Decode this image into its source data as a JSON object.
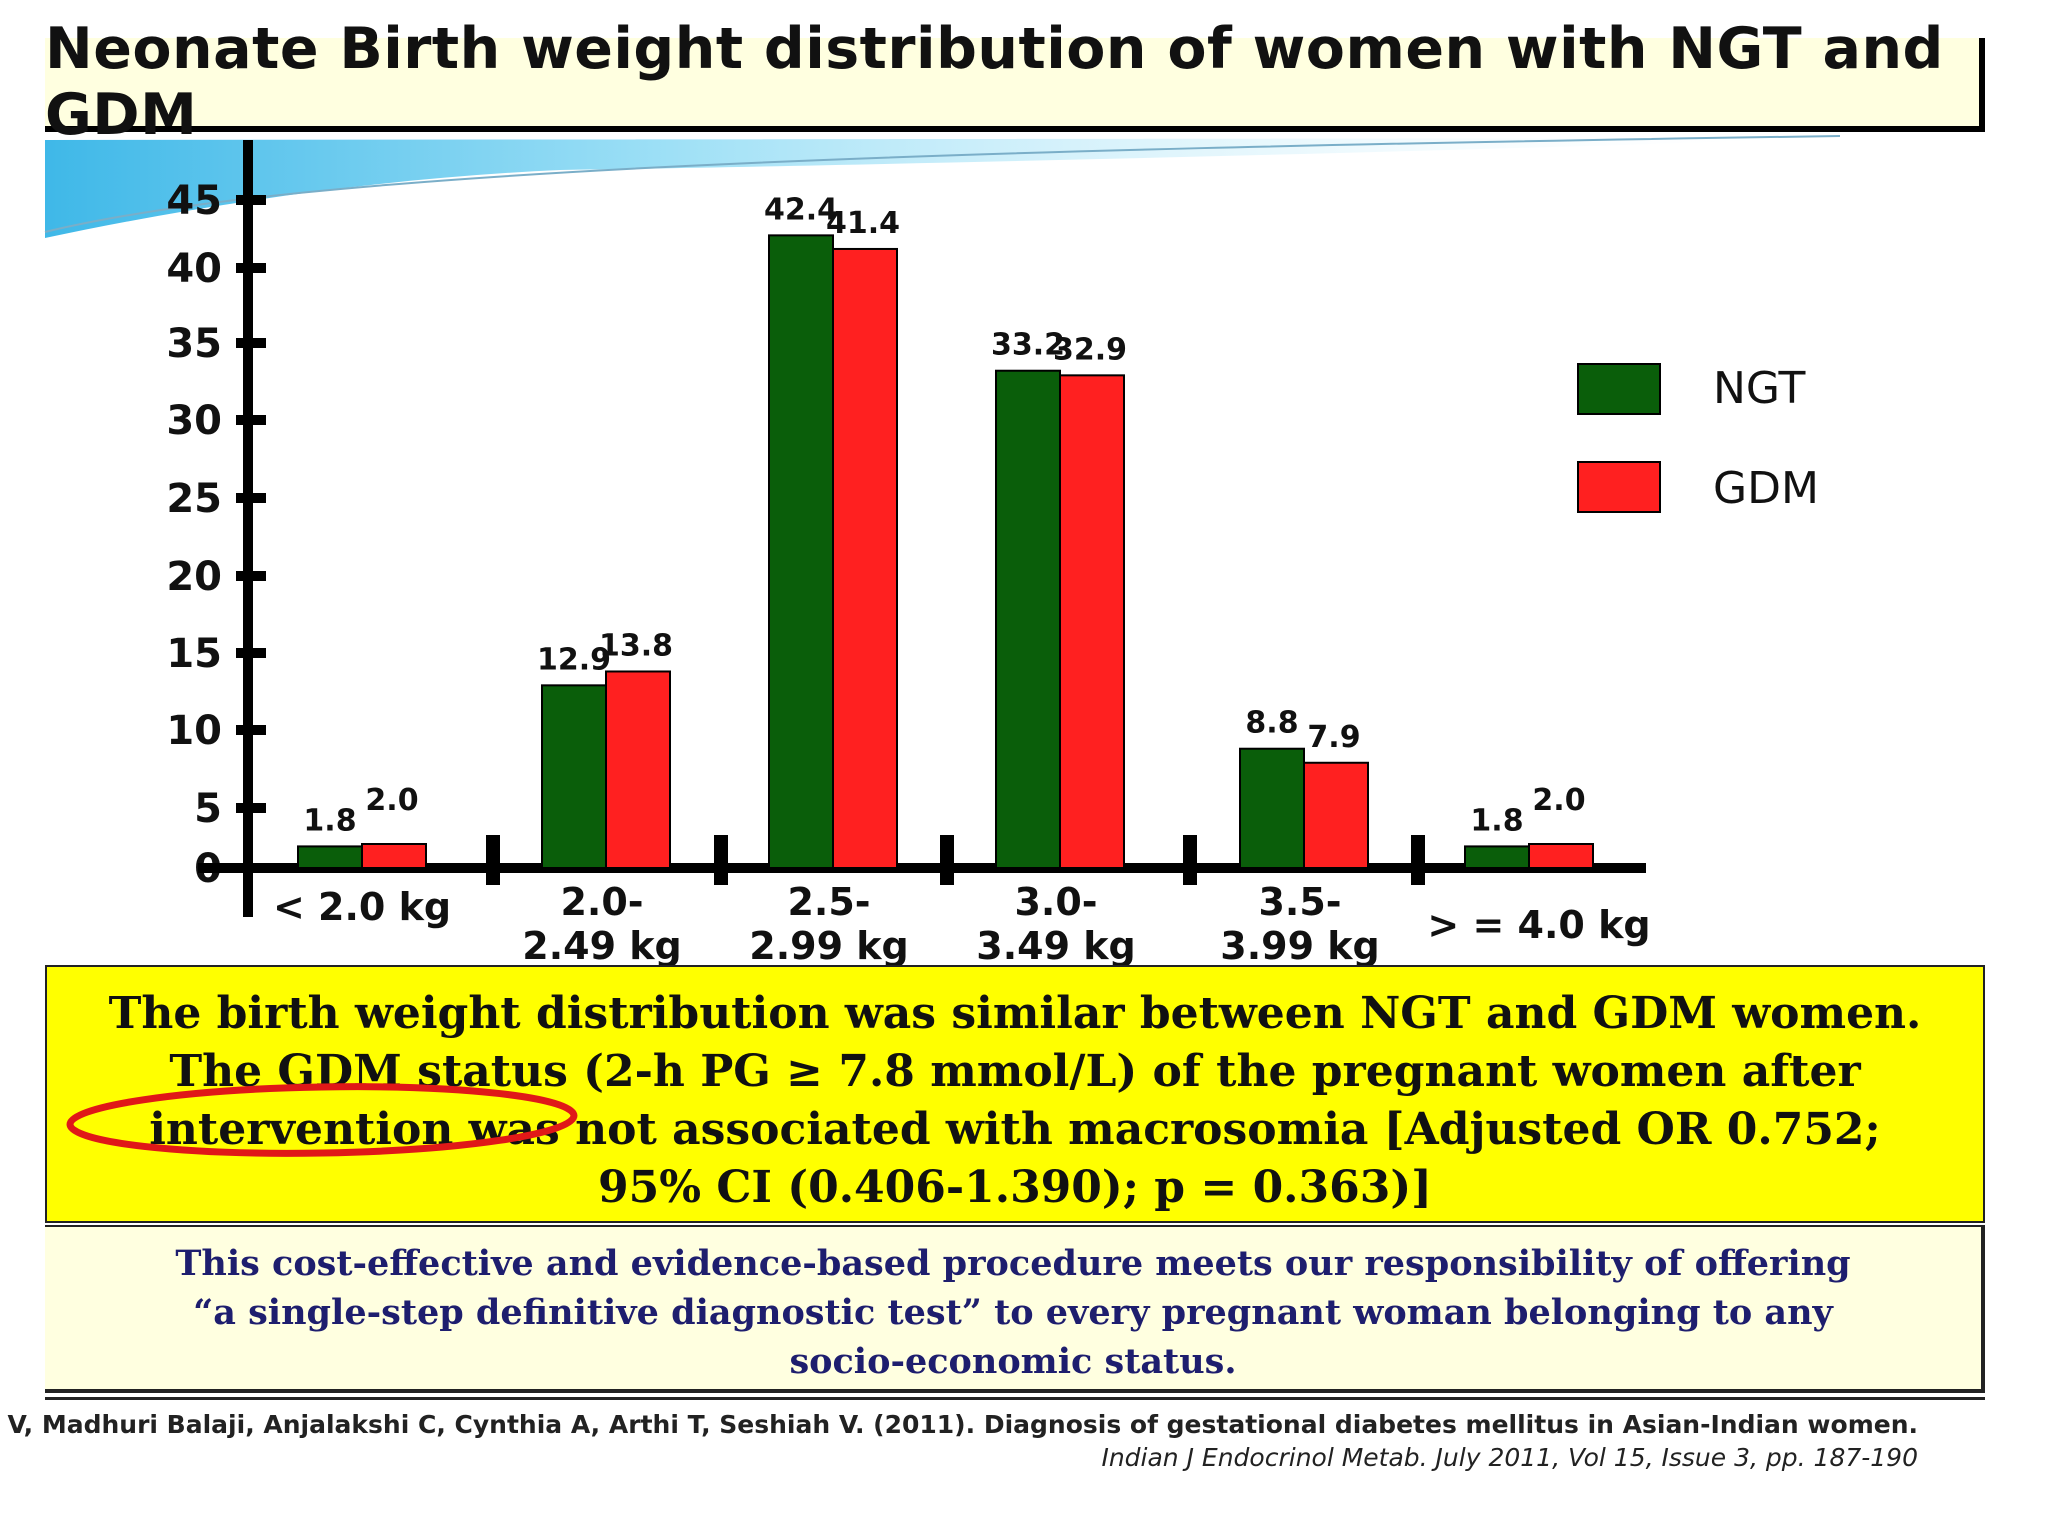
{
  "title": "Neonate Birth weight distribution of women with NGT and GDM",
  "colors": {
    "ngt": "#0a5e0a",
    "gdm": "#ff2020",
    "highlight": "#ffff00",
    "annotation": "#e01818"
  },
  "chart_data": {
    "type": "bar",
    "categories": [
      [
        "< 2.0 kg"
      ],
      [
        "2.0-",
        "2.49 kg"
      ],
      [
        "2.5-",
        "2.99 kg"
      ],
      [
        "3.0-",
        "3.49 kg"
      ],
      [
        "3.5-",
        "3.99 kg"
      ],
      [
        "> = 4.0 kg"
      ]
    ],
    "series": [
      {
        "name": "NGT",
        "values": [
          1.8,
          12.9,
          42.4,
          33.2,
          8.8,
          1.8
        ]
      },
      {
        "name": "GDM",
        "values": [
          2.0,
          13.8,
          41.4,
          32.9,
          7.9,
          2.0
        ]
      }
    ],
    "value_labels": {
      "NGT": [
        "1.8",
        "12.9",
        "42.4",
        "33.2",
        "8.8",
        "1.8"
      ],
      "GDM": [
        "2.0",
        "13.8",
        "41.4",
        "32.9",
        "7.9",
        "2.0"
      ]
    },
    "yticks": [
      0,
      5,
      10,
      15,
      20,
      25,
      30,
      35,
      40,
      45
    ],
    "ylim": [
      0,
      45
    ],
    "legend_position": "right",
    "xlabel": "",
    "ylabel": ""
  },
  "finding_box": {
    "lines": [
      "The birth weight distribution was similar between NGT and GDM women.",
      "The GDM status (2-h PG ≥ 7.8 mmol/L) of the pregnant women after",
      "intervention was not associated with macrosomia [Adjusted OR 0.752;",
      "95% CI (0.406-1.390); p = 0.363)]"
    ]
  },
  "conclusion_box": {
    "lines": [
      "This cost-effective and evidence-based procedure meets our responsibility of offering",
      "“a single-step definitive diagnostic test” to every pregnant woman belonging to any",
      "socio-economic status."
    ]
  },
  "reference": {
    "line1": "Balaji V, Madhuri Balaji, Anjalakshi C, Cynthia A, Arthi T, Seshiah V. (2011). Diagnosis of gestational diabetes mellitus in Asian-Indian women.",
    "line2": "Indian J Endocrinol Metab. July 2011, Vol 15, Issue 3, pp. 187-190"
  }
}
